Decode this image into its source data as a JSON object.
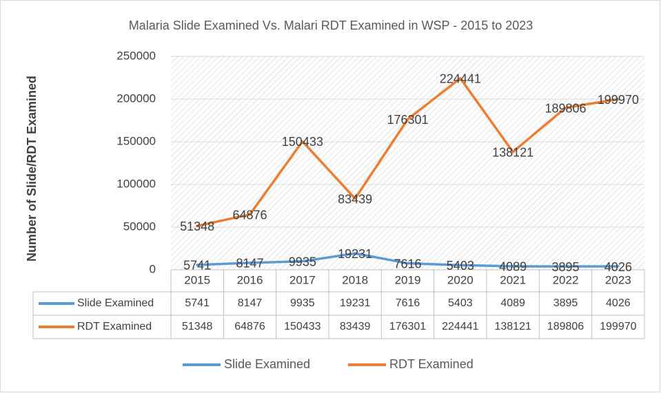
{
  "chart_data": {
    "type": "line",
    "title": "Malaria Slide Examined Vs. Malari RDT Examined in WSP - 2015 to 2023",
    "y_label": "Number of Slide/RDT Examined",
    "categories": [
      "2015",
      "2016",
      "2017",
      "2018",
      "2019",
      "2020",
      "2021",
      "2022",
      "2023"
    ],
    "series": [
      {
        "name": "Slide Examined",
        "color": "#5b9bd5",
        "values": [
          5741,
          8147,
          9935,
          19231,
          7616,
          5403,
          4089,
          3895,
          4026
        ]
      },
      {
        "name": "RDT Examined",
        "color": "#ed7d31",
        "values": [
          51348,
          64876,
          150433,
          83439,
          176301,
          224441,
          138121,
          189806,
          199970
        ]
      }
    ],
    "ylim": [
      0,
      250000
    ],
    "yticks": [
      0,
      50000,
      100000,
      150000,
      200000,
      250000
    ],
    "grid": true,
    "legend": "bottom"
  }
}
